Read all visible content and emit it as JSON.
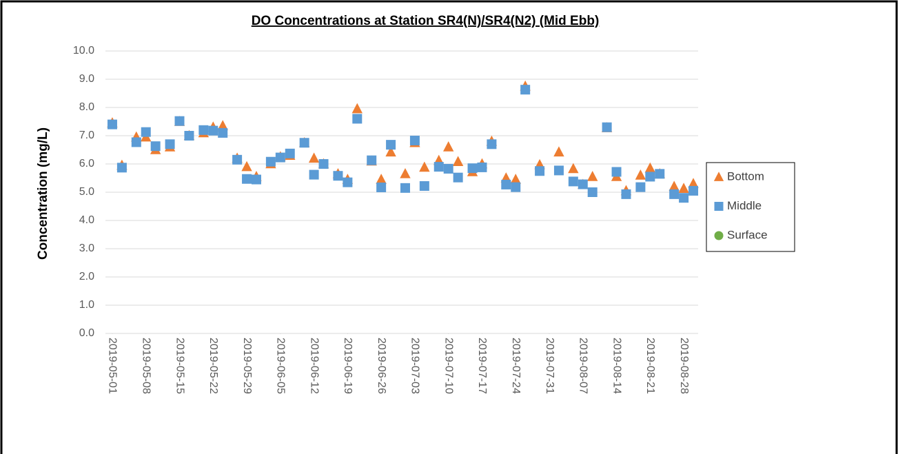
{
  "chart_data": {
    "type": "scatter",
    "title": "DO Concentrations at Station SR4(N)/SR4(N2) (Mid Ebb)",
    "y_label": "Concentration (mg/L)",
    "x": [
      "2019-05-01",
      "2019-05-03",
      "2019-05-06",
      "2019-05-08",
      "2019-05-10",
      "2019-05-13",
      "2019-05-15",
      "2019-05-17",
      "2019-05-20",
      "2019-05-22",
      "2019-05-24",
      "2019-05-27",
      "2019-05-29",
      "2019-05-31",
      "2019-06-03",
      "2019-06-05",
      "2019-06-07",
      "2019-06-10",
      "2019-06-12",
      "2019-06-14",
      "2019-06-17",
      "2019-06-19",
      "2019-06-21",
      "2019-06-24",
      "2019-06-26",
      "2019-06-28",
      "2019-07-01",
      "2019-07-03",
      "2019-07-05",
      "2019-07-08",
      "2019-07-10",
      "2019-07-12",
      "2019-07-15",
      "2019-07-17",
      "2019-07-19",
      "2019-07-22",
      "2019-07-24",
      "2019-07-26",
      "2019-07-29",
      "2019-08-02",
      "2019-08-05",
      "2019-08-07",
      "2019-08-09",
      "2019-08-12",
      "2019-08-14",
      "2019-08-16",
      "2019-08-19",
      "2019-08-21",
      "2019-08-23",
      "2019-08-26",
      "2019-08-28",
      "2019-08-30"
    ],
    "series": [
      {
        "name": "Bottom",
        "color": "#ed7d31",
        "marker": "triangle",
        "values": [
          7.45,
          5.95,
          6.95,
          6.95,
          6.5,
          6.6,
          7.5,
          7.0,
          7.1,
          7.3,
          7.35,
          6.2,
          5.9,
          5.55,
          6.0,
          6.25,
          6.3,
          6.75,
          6.2,
          6.0,
          5.65,
          5.45,
          7.95,
          6.1,
          5.45,
          6.42,
          5.65,
          6.75,
          5.88,
          6.12,
          6.6,
          6.08,
          5.72,
          6.0,
          6.8,
          5.5,
          5.45,
          8.75,
          5.97,
          6.42,
          5.83,
          5.27,
          5.55,
          7.28,
          5.55,
          5.05,
          5.6,
          5.85,
          5.65,
          5.2,
          5.13,
          5.3
        ]
      },
      {
        "name": "Middle",
        "color": "#5b9bd5",
        "marker": "square",
        "values": [
          7.4,
          5.87,
          6.77,
          7.13,
          6.63,
          6.7,
          7.52,
          7.0,
          7.2,
          7.18,
          7.1,
          6.15,
          5.47,
          5.45,
          6.08,
          6.23,
          6.37,
          6.75,
          5.62,
          6.0,
          5.58,
          5.35,
          7.6,
          6.13,
          5.17,
          6.68,
          5.15,
          6.83,
          5.22,
          5.9,
          5.83,
          5.52,
          5.85,
          5.88,
          6.7,
          5.27,
          5.18,
          8.63,
          5.75,
          5.77,
          5.38,
          5.28,
          5.0,
          7.3,
          5.72,
          4.93,
          5.18,
          5.55,
          5.65,
          4.93,
          4.8,
          5.05
        ]
      },
      {
        "name": "Surface",
        "color": "#70ad47",
        "marker": "circle",
        "values": [
          null,
          null,
          null,
          null,
          null,
          null,
          null,
          null,
          null,
          null,
          null,
          null,
          null,
          null,
          null,
          null,
          null,
          null,
          null,
          null,
          null,
          null,
          null,
          null,
          null,
          null,
          null,
          null,
          null,
          null,
          null,
          null,
          null,
          null,
          null,
          null,
          null,
          null,
          null,
          null,
          null,
          null,
          null,
          null,
          null,
          null,
          null,
          null,
          null,
          null,
          null,
          null
        ]
      }
    ],
    "xlim": [
      "2019-04-30",
      "2019-08-31"
    ],
    "xticks": [
      "2019-05-01",
      "2019-05-08",
      "2019-05-15",
      "2019-05-22",
      "2019-05-29",
      "2019-06-05",
      "2019-06-12",
      "2019-06-19",
      "2019-06-26",
      "2019-07-03",
      "2019-07-10",
      "2019-07-17",
      "2019-07-24",
      "2019-07-31",
      "2019-08-07",
      "2019-08-14",
      "2019-08-21",
      "2019-08-28"
    ],
    "ylim": [
      0,
      10
    ],
    "yticks": [
      {
        "value": 0,
        "label": "0.0"
      },
      {
        "value": 1,
        "label": "1.0"
      },
      {
        "value": 2,
        "label": "2.0"
      },
      {
        "value": 3,
        "label": "3.0"
      },
      {
        "value": 4,
        "label": "4.0"
      },
      {
        "value": 5,
        "label": "5.0"
      },
      {
        "value": 6,
        "label": "6.0"
      },
      {
        "value": 7,
        "label": "7.0"
      },
      {
        "value": 8,
        "label": "8.0"
      },
      {
        "value": 9,
        "label": "9.0"
      },
      {
        "value": 10,
        "label": "10.0"
      }
    ],
    "grid": true,
    "legend": "right"
  }
}
